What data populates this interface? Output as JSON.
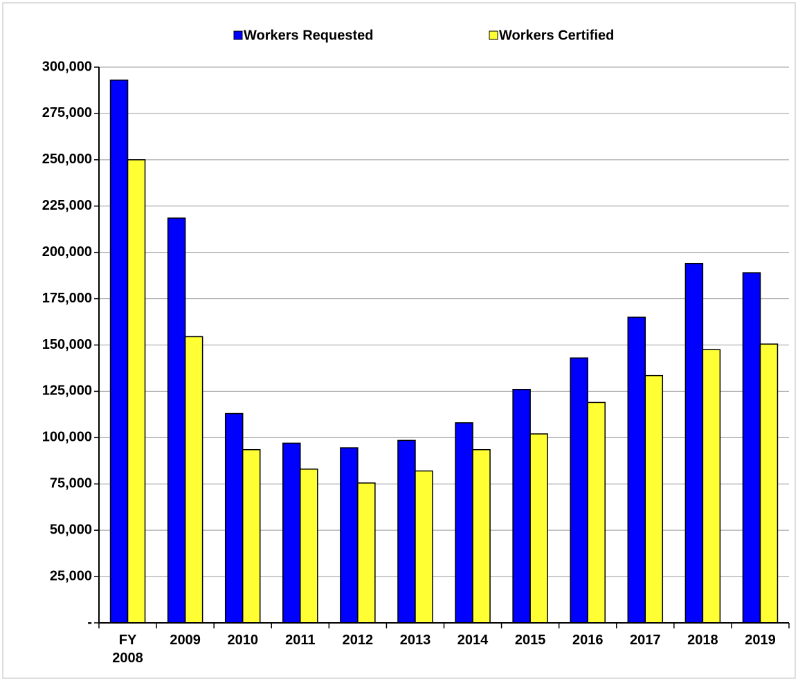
{
  "chart_data": {
    "type": "bar",
    "categories": [
      "FY 2008",
      "2009",
      "2010",
      "2011",
      "2012",
      "2013",
      "2014",
      "2015",
      "2016",
      "2017",
      "2018",
      "2019"
    ],
    "series": [
      {
        "name": "Workers Requested",
        "color": "#0000ff",
        "values": [
          293000,
          218500,
          113000,
          97000,
          94500,
          98500,
          108000,
          126000,
          143000,
          165000,
          194000,
          189000
        ]
      },
      {
        "name": "Workers Certified",
        "color": "#ffff33",
        "values": [
          250000,
          154500,
          93500,
          83000,
          75500,
          82000,
          93500,
          102000,
          119000,
          133500,
          147500,
          150500
        ]
      }
    ],
    "ylim": [
      0,
      300000
    ],
    "yticks": [
      {
        "value": 0,
        "label": "-"
      },
      {
        "value": 25000,
        "label": "25,000"
      },
      {
        "value": 50000,
        "label": "50,000"
      },
      {
        "value": 75000,
        "label": "75,000"
      },
      {
        "value": 100000,
        "label": "100,000"
      },
      {
        "value": 125000,
        "label": "125,000"
      },
      {
        "value": 150000,
        "label": "150,000"
      },
      {
        "value": 175000,
        "label": "175,000"
      },
      {
        "value": 200000,
        "label": "200,000"
      },
      {
        "value": 225000,
        "label": "225,000"
      },
      {
        "value": 250000,
        "label": "250,000"
      },
      {
        "value": 275000,
        "label": "275,000"
      },
      {
        "value": 300000,
        "label": "300,000"
      }
    ],
    "grid": true,
    "legend": "top"
  }
}
